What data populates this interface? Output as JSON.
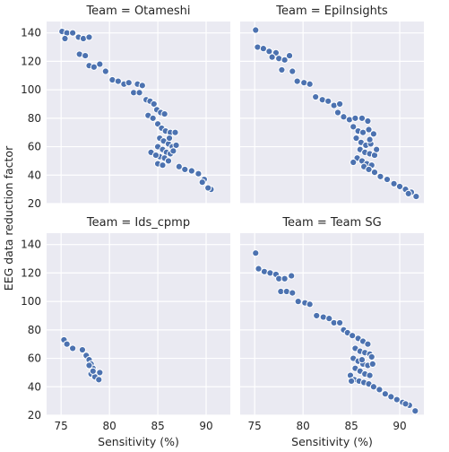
{
  "chart_data": {
    "type": "scatter",
    "facet_grid": "2x2",
    "shared_axes": true,
    "xlabel": "Sensitivity (%)",
    "ylabel": "EEG data reduction factor",
    "xlim": [
      73.5,
      92.5
    ],
    "ylim": [
      20,
      148
    ],
    "xticks": [
      75,
      80,
      85,
      90
    ],
    "yticks": [
      20,
      40,
      60,
      80,
      100,
      120,
      140
    ],
    "grid": true,
    "background": "#eaeaf2",
    "marker_color": "#4c72b0",
    "marker_edge": "#ffffff",
    "panels": [
      {
        "title": "Team = Otameshi",
        "points": [
          [
            75.1,
            141
          ],
          [
            75.6,
            140
          ],
          [
            76.2,
            140
          ],
          [
            75.4,
            136
          ],
          [
            76.8,
            137
          ],
          [
            77.3,
            136
          ],
          [
            77.9,
            137
          ],
          [
            76.9,
            125
          ],
          [
            77.5,
            124
          ],
          [
            77.9,
            117
          ],
          [
            78.4,
            116
          ],
          [
            79.0,
            118
          ],
          [
            79.6,
            113
          ],
          [
            80.3,
            107
          ],
          [
            80.9,
            106
          ],
          [
            81.5,
            104
          ],
          [
            82.0,
            105
          ],
          [
            82.9,
            104
          ],
          [
            82.5,
            98
          ],
          [
            83.1,
            98
          ],
          [
            83.4,
            103
          ],
          [
            83.8,
            93
          ],
          [
            84.2,
            92
          ],
          [
            84.6,
            90
          ],
          [
            84.9,
            86
          ],
          [
            85.3,
            84
          ],
          [
            85.7,
            83
          ],
          [
            84.0,
            82
          ],
          [
            84.5,
            80
          ],
          [
            85.0,
            76
          ],
          [
            85.4,
            73
          ],
          [
            85.8,
            71
          ],
          [
            86.3,
            70
          ],
          [
            86.8,
            70
          ],
          [
            85.2,
            66
          ],
          [
            85.6,
            64
          ],
          [
            86.1,
            62
          ],
          [
            86.5,
            60
          ],
          [
            86.9,
            61
          ],
          [
            85.0,
            60
          ],
          [
            85.5,
            58
          ],
          [
            85.9,
            56
          ],
          [
            86.3,
            55
          ],
          [
            85.2,
            53
          ],
          [
            85.7,
            52
          ],
          [
            86.1,
            50
          ],
          [
            84.3,
            56
          ],
          [
            84.8,
            54
          ],
          [
            85.0,
            48
          ],
          [
            85.5,
            47
          ],
          [
            87.2,
            46
          ],
          [
            87.8,
            44
          ],
          [
            88.5,
            43
          ],
          [
            89.2,
            41
          ],
          [
            89.8,
            37
          ],
          [
            90.5,
            30
          ],
          [
            90.2,
            31
          ],
          [
            89.6,
            35
          ],
          [
            86.6,
            57
          ],
          [
            86.2,
            66
          ]
        ]
      },
      {
        "title": "Team = EpiInsights",
        "points": [
          [
            75.1,
            142
          ],
          [
            75.3,
            130
          ],
          [
            75.9,
            129
          ],
          [
            76.5,
            127
          ],
          [
            77.2,
            126
          ],
          [
            76.8,
            123
          ],
          [
            77.5,
            122
          ],
          [
            78.1,
            121
          ],
          [
            78.6,
            124
          ],
          [
            77.8,
            114
          ],
          [
            78.9,
            113
          ],
          [
            79.4,
            106
          ],
          [
            80.1,
            105
          ],
          [
            80.7,
            104
          ],
          [
            81.3,
            95
          ],
          [
            82.0,
            93
          ],
          [
            82.6,
            92
          ],
          [
            83.2,
            89
          ],
          [
            83.8,
            90
          ],
          [
            83.6,
            84
          ],
          [
            84.2,
            81
          ],
          [
            84.8,
            79
          ],
          [
            85.4,
            80
          ],
          [
            86.1,
            80
          ],
          [
            86.7,
            78
          ],
          [
            85.2,
            74
          ],
          [
            85.7,
            71
          ],
          [
            86.2,
            70
          ],
          [
            86.8,
            72
          ],
          [
            87.3,
            69
          ],
          [
            85.5,
            66
          ],
          [
            86.0,
            63
          ],
          [
            86.5,
            61
          ],
          [
            87.0,
            62
          ],
          [
            85.9,
            58
          ],
          [
            86.4,
            56
          ],
          [
            86.9,
            55
          ],
          [
            87.4,
            54
          ],
          [
            85.6,
            52
          ],
          [
            86.1,
            50
          ],
          [
            86.6,
            48
          ],
          [
            87.1,
            47
          ],
          [
            85.2,
            49
          ],
          [
            86.3,
            46
          ],
          [
            86.8,
            44
          ],
          [
            87.4,
            42
          ],
          [
            88.0,
            39
          ],
          [
            88.7,
            37
          ],
          [
            89.4,
            34
          ],
          [
            90.0,
            32
          ],
          [
            90.6,
            30
          ],
          [
            91.2,
            28
          ],
          [
            91.7,
            25
          ],
          [
            90.9,
            27
          ],
          [
            86.9,
            65
          ],
          [
            87.6,
            58
          ]
        ]
      },
      {
        "title": "Team = Ids_cpmp",
        "points": [
          [
            75.3,
            73
          ],
          [
            75.6,
            70
          ],
          [
            76.2,
            67
          ],
          [
            77.2,
            66
          ],
          [
            77.6,
            62
          ],
          [
            77.9,
            59
          ],
          [
            78.1,
            56
          ],
          [
            78.3,
            53
          ],
          [
            78.1,
            49
          ],
          [
            78.5,
            47
          ],
          [
            78.9,
            45
          ],
          [
            79.0,
            50
          ],
          [
            78.3,
            51
          ],
          [
            77.9,
            55
          ]
        ]
      },
      {
        "title": "Team = Team SG",
        "points": [
          [
            75.1,
            134
          ],
          [
            75.4,
            123
          ],
          [
            76.0,
            121
          ],
          [
            76.6,
            120
          ],
          [
            77.2,
            119
          ],
          [
            77.5,
            116
          ],
          [
            78.1,
            116
          ],
          [
            78.8,
            118
          ],
          [
            77.7,
            107
          ],
          [
            78.3,
            107
          ],
          [
            78.9,
            106
          ],
          [
            79.5,
            100
          ],
          [
            80.2,
            99
          ],
          [
            80.7,
            98
          ],
          [
            81.4,
            90
          ],
          [
            82.1,
            89
          ],
          [
            82.7,
            88
          ],
          [
            83.2,
            85
          ],
          [
            83.8,
            85
          ],
          [
            84.2,
            80
          ],
          [
            84.6,
            78
          ],
          [
            85.1,
            76
          ],
          [
            85.7,
            74
          ],
          [
            86.2,
            72
          ],
          [
            86.7,
            70
          ],
          [
            85.4,
            67
          ],
          [
            85.9,
            65
          ],
          [
            86.4,
            64
          ],
          [
            86.9,
            63
          ],
          [
            85.2,
            60
          ],
          [
            85.7,
            58
          ],
          [
            86.2,
            56
          ],
          [
            86.7,
            55
          ],
          [
            87.2,
            56
          ],
          [
            85.4,
            53
          ],
          [
            85.9,
            51
          ],
          [
            86.4,
            49
          ],
          [
            86.9,
            48
          ],
          [
            84.9,
            48
          ],
          [
            85.3,
            45
          ],
          [
            85.8,
            44
          ],
          [
            86.3,
            43
          ],
          [
            86.8,
            42
          ],
          [
            87.3,
            40
          ],
          [
            87.9,
            38
          ],
          [
            88.5,
            35
          ],
          [
            89.1,
            33
          ],
          [
            89.7,
            31
          ],
          [
            90.3,
            29
          ],
          [
            91.0,
            27
          ],
          [
            91.6,
            23
          ],
          [
            90.6,
            28
          ],
          [
            85.0,
            44
          ],
          [
            86.1,
            59
          ],
          [
            87.1,
            61
          ]
        ]
      }
    ]
  }
}
